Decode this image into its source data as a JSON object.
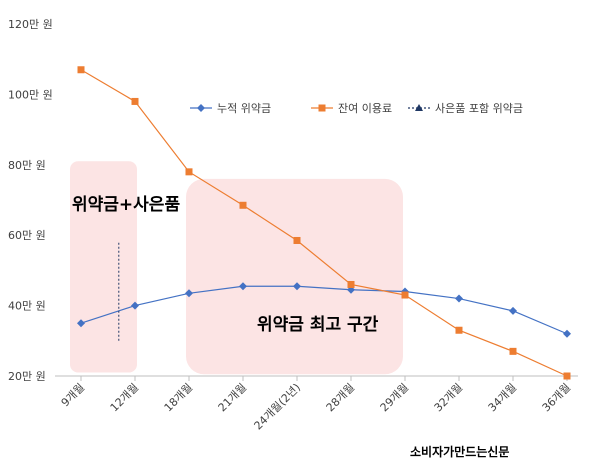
{
  "chart_data": {
    "type": "line",
    "categories": [
      "9개월",
      "12개월",
      "18개월",
      "21개월",
      "24개월(2년)",
      "28개월",
      "29개월",
      "32개월",
      "34개월",
      "36개월"
    ],
    "series": [
      {
        "name": "누적 위약금",
        "color": "#4472C4",
        "marker": "diamond",
        "values": [
          35,
          40,
          43.5,
          45.5,
          45.5,
          44.5,
          44,
          42,
          38.5,
          32
        ]
      },
      {
        "name": "잔여 이용료",
        "color": "#ED7D31",
        "marker": "square",
        "values": [
          107,
          98,
          78,
          68.5,
          58.5,
          46,
          43,
          33,
          27,
          20
        ]
      },
      {
        "name": "사은품 포함 위약금",
        "color": "#203864",
        "marker": "triangle",
        "style": "dashed",
        "segment": {
          "x": 0.7,
          "y_from": 30,
          "y_to": 58
        }
      }
    ],
    "yticks": [
      "20만 원",
      "40만 원",
      "60만 원",
      "80만 원",
      "100만 원",
      "120만 원"
    ],
    "ylim": [
      20,
      120
    ],
    "grid": false,
    "legend_position": "top-right",
    "annotations": [
      "위약금+사은품",
      "위약금 최고 구간"
    ],
    "highlight_color": "#FCE4E4",
    "source": "소비자가만드는신문"
  }
}
